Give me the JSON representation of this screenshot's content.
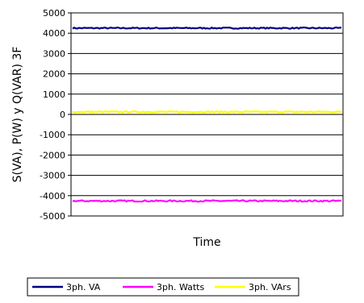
{
  "chart_data": {
    "type": "line",
    "title": "",
    "xlabel": "Time",
    "ylabel": "S(VA), P(W) y Q(VAR) 3F",
    "ylim": [
      -5000,
      5000
    ],
    "yticks": [
      "5000",
      "4000",
      "3000",
      "2000",
      "1000",
      "0",
      "-1000",
      "-2000",
      "-3000",
      "-4000",
      "-5000"
    ],
    "ytick_values": [
      5000,
      4000,
      3000,
      2000,
      1000,
      0,
      -1000,
      -2000,
      -3000,
      -4000,
      -5000
    ],
    "grid": true,
    "legend_position": "bottom",
    "series": [
      {
        "name": "3ph. VA",
        "color": "#000080",
        "level": 4250,
        "noise": 30
      },
      {
        "name": "3ph. Watts",
        "color": "#ff00ff",
        "level": -4260,
        "noise": 35
      },
      {
        "name": "3ph. VArs",
        "color": "#ffff00",
        "level": 130,
        "noise": 30
      }
    ]
  }
}
